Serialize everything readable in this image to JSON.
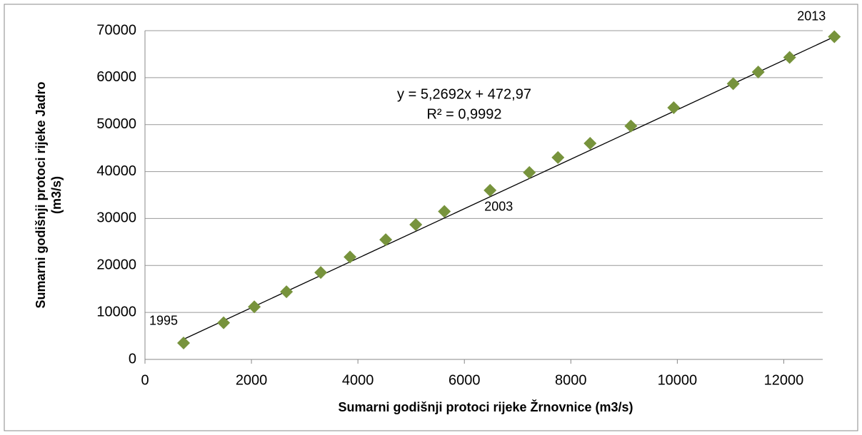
{
  "chart_data": {
    "type": "scatter",
    "x_label": "Sumarni godišnji protoci rijeke Žrnovnice (m3/s)",
    "y_label": [
      "Sumarni godišnji protoci rijeke Jadro",
      "(m3/s)"
    ],
    "series": [
      {
        "color": "#77933c",
        "x": [
          725,
          1477,
          2054,
          2658,
          3302,
          3852,
          4523,
          5087,
          5624,
          6483,
          7221,
          7758,
          8362,
          9128,
          9933,
          11050,
          11520,
          12110,
          12950
        ],
        "values": [
          3500,
          7800,
          11200,
          14400,
          18500,
          21800,
          25500,
          28700,
          31500,
          36000,
          39800,
          43000,
          46000,
          49700,
          53600,
          58700,
          61200,
          64300,
          68700
        ]
      }
    ],
    "trendline": {
      "slope": 5.2692,
      "intercept": 472.97,
      "color": "#000000"
    },
    "equation": [
      "y = 5,2692x + 472,97",
      "R² = 0,9992"
    ],
    "annotations": [
      {
        "text": "1995",
        "point": 0
      },
      {
        "text": "2003",
        "point": 9
      },
      {
        "text": "2013",
        "point": 18
      }
    ],
    "xlim": [
      0,
      13000
    ],
    "xticks": [
      0,
      2000,
      4000,
      6000,
      8000,
      10000,
      12000
    ],
    "ylim": [
      0,
      70000
    ],
    "yticks": [
      0,
      10000,
      20000,
      30000,
      40000,
      50000,
      60000,
      70000
    ],
    "grid": true
  }
}
